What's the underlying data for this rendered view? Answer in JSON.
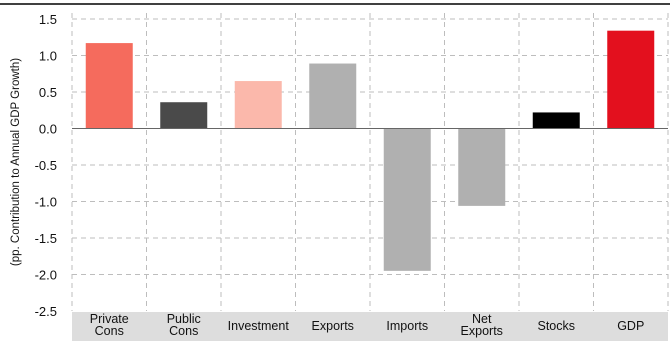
{
  "chart_data": {
    "type": "bar",
    "title": "",
    "xlabel": "",
    "ylabel": "(pp. Contribution to Annual GDP Growth)",
    "ylim": [
      -2.5,
      1.5
    ],
    "yticks": [
      "1.5",
      "1.0",
      "0.5",
      "0.0",
      "-0.5",
      "-1.0",
      "-1.5",
      "-2.0",
      "-2.5"
    ],
    "categories": [
      [
        "Private",
        "Cons"
      ],
      [
        "Public",
        "Cons"
      ],
      [
        "Investment"
      ],
      [
        "Exports"
      ],
      [
        "Imports"
      ],
      [
        "Net",
        "Exports"
      ],
      [
        "Stocks"
      ],
      [
        "GDP"
      ]
    ],
    "values": [
      1.17,
      0.36,
      0.65,
      0.89,
      -1.95,
      -1.06,
      0.22,
      1.34
    ],
    "colors": [
      "#f56b5d",
      "#4a4a4a",
      "#fbb8ab",
      "#b0b0b0",
      "#b0b0b0",
      "#b0b0b0",
      "#000000",
      "#e3101e"
    ],
    "grid": true,
    "category_band_color": "#dddddd"
  }
}
